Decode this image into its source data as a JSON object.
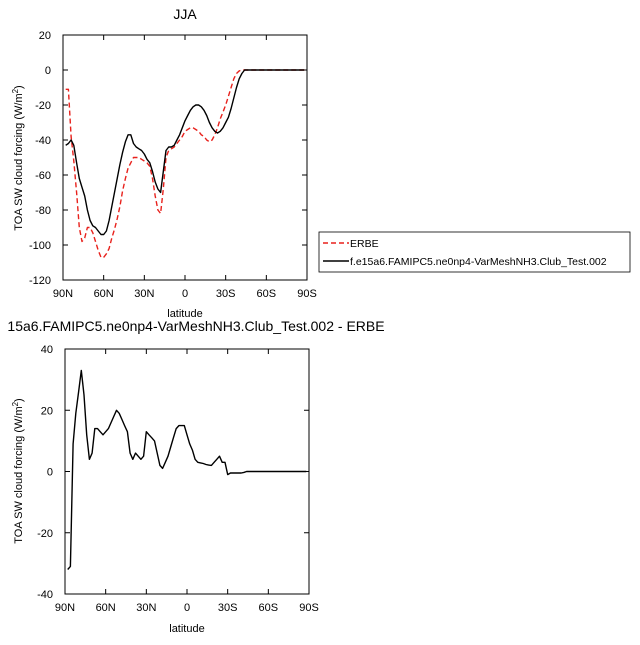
{
  "chart_data": [
    {
      "type": "line",
      "title": "JJA",
      "xlabel": "latitude",
      "ylabel_main": "TOA SW cloud forcing (W/m",
      "ylabel_sup": "2",
      "ylabel_close": ")",
      "xlim": [
        90,
        -90
      ],
      "ylim": [
        -120,
        20
      ],
      "xticks": [
        90,
        60,
        30,
        0,
        -30,
        -60,
        -90
      ],
      "xtick_labels": [
        "90N",
        "60N",
        "30N",
        "0",
        "30S",
        "60S",
        "90S"
      ],
      "yticks": [
        -120,
        -100,
        -80,
        -60,
        -40,
        -20,
        0,
        20
      ],
      "ytick_labels": [
        "-120",
        "-100",
        "-80",
        "-60",
        "-40",
        "-20",
        "0",
        "20"
      ],
      "grid": false,
      "legend": "outside-right",
      "series": [
        {
          "name": "ERBE",
          "color": "#e8211c",
          "dash": "dashed",
          "x": [
            88,
            86,
            84,
            82,
            80,
            78,
            76,
            74,
            72,
            70,
            68,
            66,
            64,
            62,
            60,
            58,
            56,
            54,
            52,
            50,
            48,
            46,
            44,
            42,
            40,
            38,
            36,
            34,
            32,
            30,
            28,
            26,
            24,
            22,
            20,
            18,
            16,
            14,
            12,
            10,
            8,
            6,
            4,
            2,
            0,
            -2,
            -4,
            -6,
            -8,
            -10,
            -12,
            -14,
            -16,
            -18,
            -20,
            -22,
            -24,
            -26,
            -28,
            -30,
            -32,
            -34,
            -36,
            -38,
            -40,
            -42,
            -44,
            -46,
            -48,
            -50,
            -52,
            -54,
            -56,
            -58,
            -60,
            -62,
            -64,
            -66,
            -68,
            -70,
            -72,
            -74,
            -76,
            -78,
            -80,
            -82,
            -84,
            -86,
            -88
          ],
          "y": [
            -11,
            -11,
            -38,
            -52,
            -70,
            -90,
            -98,
            -96,
            -90,
            -90,
            -93,
            -98,
            -103,
            -107,
            -107,
            -105,
            -102,
            -96,
            -91,
            -85,
            -78,
            -69,
            -62,
            -56,
            -53,
            -50,
            -50,
            -50,
            -51,
            -52,
            -53,
            -55,
            -62,
            -72,
            -80,
            -82,
            -68,
            -50,
            -46,
            -45,
            -44,
            -42,
            -40,
            -38,
            -35,
            -34,
            -33,
            -33,
            -34,
            -35,
            -37,
            -38,
            -40,
            -41,
            -40,
            -37,
            -33,
            -28,
            -24,
            -20,
            -15,
            -10,
            -5,
            -2,
            -0.5,
            0,
            0,
            0,
            0,
            0,
            0,
            0,
            0,
            0,
            0,
            0,
            0,
            0,
            0,
            0,
            0,
            0,
            0,
            0,
            0,
            0,
            0,
            0,
            0
          ]
        },
        {
          "name": "f.e15a6.FAMIPC5.ne0np4-VarMeshNH3.Club_Test.002",
          "color": "#000000",
          "dash": "solid",
          "x": [
            88,
            86,
            84,
            82,
            80,
            78,
            76,
            74,
            72,
            70,
            68,
            66,
            64,
            62,
            60,
            58,
            56,
            54,
            52,
            50,
            48,
            46,
            44,
            42,
            40,
            38,
            36,
            34,
            32,
            30,
            28,
            26,
            24,
            22,
            20,
            18,
            16,
            14,
            12,
            10,
            8,
            6,
            4,
            2,
            0,
            -2,
            -4,
            -6,
            -8,
            -10,
            -12,
            -14,
            -16,
            -18,
            -20,
            -22,
            -24,
            -26,
            -28,
            -30,
            -32,
            -34,
            -36,
            -38,
            -40,
            -42,
            -44,
            -46,
            -48,
            -50,
            -52,
            -54,
            -56,
            -58,
            -60,
            -62,
            -64,
            -66,
            -68,
            -70,
            -72,
            -74,
            -76,
            -78,
            -80,
            -82,
            -84,
            -86,
            -88
          ],
          "y": [
            -43,
            -42,
            -40,
            -43,
            -53,
            -62,
            -67,
            -72,
            -80,
            -86,
            -89,
            -90,
            -92,
            -94,
            -94,
            -92,
            -86,
            -78,
            -70,
            -62,
            -54,
            -47,
            -41,
            -37,
            -37,
            -42,
            -44,
            -45,
            -46,
            -48,
            -51,
            -53,
            -58,
            -64,
            -68,
            -70,
            -58,
            -46,
            -44,
            -44,
            -43,
            -40,
            -37,
            -33,
            -29,
            -26,
            -23,
            -21,
            -20,
            -20,
            -21,
            -23,
            -26,
            -30,
            -33,
            -35,
            -36,
            -35,
            -33,
            -30,
            -27,
            -22,
            -16,
            -10,
            -5,
            -2,
            0,
            0,
            0,
            0,
            0,
            0,
            0,
            0,
            0,
            0,
            0,
            0,
            0,
            0,
            0,
            0,
            0,
            0,
            0,
            0,
            0,
            0,
            0
          ]
        }
      ]
    },
    {
      "type": "line",
      "title": "15a6.FAMIPC5.ne0np4-VarMeshNH3.Club_Test.002 - ERBE",
      "xlabel": "latitude",
      "ylabel_main": "TOA SW cloud forcing (W/m",
      "ylabel_sup": "2",
      "ylabel_close": ")",
      "xlim": [
        90,
        -90
      ],
      "ylim": [
        -40,
        40
      ],
      "xticks": [
        90,
        60,
        30,
        0,
        -30,
        -60,
        -90
      ],
      "xtick_labels": [
        "90N",
        "60N",
        "30N",
        "0",
        "30S",
        "60S",
        "90S"
      ],
      "yticks": [
        -40,
        -20,
        0,
        20,
        40
      ],
      "ytick_labels": [
        "-40",
        "-20",
        "0",
        "20",
        "40"
      ],
      "grid": false,
      "series": [
        {
          "color": "#000000",
          "dash": "solid",
          "x": [
            88,
            86,
            84,
            82,
            80,
            78,
            76,
            74,
            72,
            70,
            68,
            66,
            64,
            62,
            60,
            58,
            56,
            54,
            52,
            50,
            48,
            46,
            44,
            42,
            40,
            38,
            36,
            34,
            32,
            30,
            28,
            26,
            24,
            22,
            20,
            18,
            16,
            14,
            12,
            10,
            8,
            6,
            4,
            2,
            0,
            -2,
            -4,
            -6,
            -8,
            -10,
            -12,
            -14,
            -16,
            -18,
            -20,
            -22,
            -24,
            -26,
            -28,
            -30,
            -32,
            -34,
            -36,
            -38,
            -40,
            -42,
            -44,
            -46,
            -48,
            -50,
            -52,
            -54,
            -56,
            -58,
            -60,
            -62,
            -64,
            -66,
            -68,
            -70,
            -72,
            -74,
            -76,
            -78,
            -80,
            -82,
            -84,
            -86,
            -88
          ],
          "y": [
            -32,
            -31,
            9,
            19,
            26,
            33,
            25,
            12,
            4,
            6,
            14,
            14,
            13,
            12,
            13,
            14,
            16,
            18,
            20,
            19,
            17,
            15,
            13,
            6,
            4,
            6,
            5,
            4,
            5,
            13,
            12,
            11,
            10,
            6,
            2,
            1,
            3,
            5,
            8,
            11,
            14,
            15,
            15,
            15,
            12,
            9,
            7,
            4,
            3,
            2.8,
            2.6,
            2.3,
            2.1,
            2,
            3,
            4,
            5,
            3,
            3,
            -1,
            -0.5,
            -0.5,
            -0.5,
            -0.5,
            -0.5,
            -0.3,
            0,
            0,
            0,
            0,
            0,
            0,
            0,
            0,
            0,
            0,
            0,
            0,
            0,
            0,
            0,
            0,
            0,
            0,
            0,
            0,
            0,
            0,
            0
          ]
        }
      ]
    }
  ]
}
